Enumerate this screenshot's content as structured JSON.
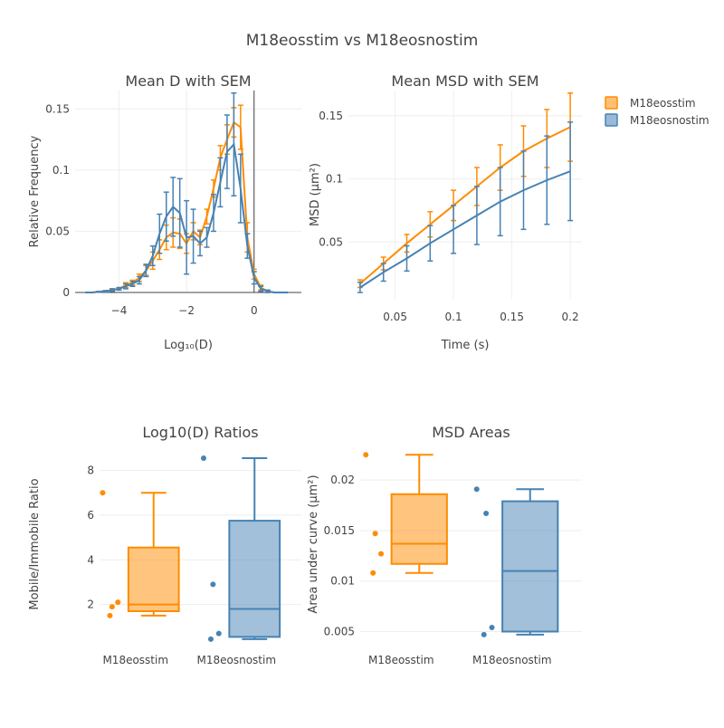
{
  "figure": {
    "title": "M18eosstim vs M18eosnostim",
    "legend": {
      "position": "top-right",
      "items": [
        {
          "label": "M18eosstim",
          "color": "#ff8c00"
        },
        {
          "label": "M18eosnostim",
          "color": "#4682b4"
        }
      ]
    },
    "colors": {
      "M18eosstim": "#ff8c00",
      "M18eosnostim": "#4682b4",
      "axis": "#444444",
      "grid": "#eeeeee"
    }
  },
  "chart_data": [
    {
      "id": "meanD",
      "type": "line",
      "title": "Mean D with SEM",
      "xlabel": "Log₁₀(D)",
      "ylabel": "Relative Frequency",
      "xlim": [
        -5.3,
        1.4
      ],
      "ylim": [
        0,
        0.165
      ],
      "xticks": [
        -4,
        -2,
        0
      ],
      "xtick_labels": [
        "−4",
        "−2",
        "0"
      ],
      "yticks": [
        0,
        0.05,
        0.1,
        0.15
      ],
      "ytick_labels": [
        "0",
        "0.05",
        "0.1",
        "0.15"
      ],
      "grid": true,
      "vline_x": 0,
      "x": [
        -5.0,
        -4.8,
        -4.6,
        -4.4,
        -4.2,
        -4.0,
        -3.8,
        -3.6,
        -3.4,
        -3.2,
        -3.0,
        -2.8,
        -2.6,
        -2.4,
        -2.2,
        -2.0,
        -1.8,
        -1.6,
        -1.4,
        -1.2,
        -1.0,
        -0.8,
        -0.6,
        -0.4,
        -0.2,
        0.0,
        0.2,
        0.4,
        0.6,
        0.8,
        1.0
      ],
      "series": [
        {
          "name": "M18eosstim",
          "color": "#ff8c00",
          "values": [
            0.0,
            0.0,
            0.0005,
            0.001,
            0.002,
            0.003,
            0.006,
            0.008,
            0.012,
            0.018,
            0.026,
            0.035,
            0.045,
            0.049,
            0.048,
            0.04,
            0.05,
            0.045,
            0.062,
            0.085,
            0.11,
            0.125,
            0.139,
            0.135,
            0.045,
            0.015,
            0.004,
            0.001,
            0.0,
            0.0,
            0.0
          ],
          "err": [
            0.0,
            0.0,
            0.0003,
            0.0005,
            0.001,
            0.001,
            0.002,
            0.002,
            0.003,
            0.004,
            0.007,
            0.008,
            0.01,
            0.012,
            0.012,
            0.008,
            0.007,
            0.006,
            0.006,
            0.007,
            0.01,
            0.012,
            0.012,
            0.018,
            0.012,
            0.004,
            0.002,
            0.001,
            0.0,
            0.0,
            0.0
          ]
        },
        {
          "name": "M18eosnostim",
          "color": "#4682b4",
          "values": [
            0.0,
            0.0,
            0.0005,
            0.001,
            0.002,
            0.003,
            0.005,
            0.007,
            0.01,
            0.018,
            0.03,
            0.048,
            0.062,
            0.07,
            0.065,
            0.045,
            0.046,
            0.04,
            0.045,
            0.065,
            0.09,
            0.115,
            0.121,
            0.085,
            0.038,
            0.012,
            0.003,
            0.001,
            0.0,
            0.0,
            0.0
          ],
          "err": [
            0.0,
            0.0,
            0.0003,
            0.0005,
            0.001,
            0.001,
            0.002,
            0.002,
            0.003,
            0.005,
            0.008,
            0.016,
            0.02,
            0.024,
            0.028,
            0.03,
            0.022,
            0.01,
            0.008,
            0.015,
            0.02,
            0.03,
            0.042,
            0.028,
            0.01,
            0.005,
            0.002,
            0.001,
            0.0,
            0.0,
            0.0
          ]
        }
      ]
    },
    {
      "id": "meanMSD",
      "type": "line",
      "title": "Mean MSD with SEM",
      "xlabel": "Time (s)",
      "ylabel": "MSD (μm²)",
      "xlim": [
        0.01,
        0.21
      ],
      "ylim": [
        0.005,
        0.17
      ],
      "xticks": [
        0.05,
        0.1,
        0.15,
        0.2
      ],
      "xtick_labels": [
        "0.05",
        "0.1",
        "0.15",
        "0.2"
      ],
      "yticks": [
        0.05,
        0.1,
        0.15
      ],
      "ytick_labels": [
        "0.05",
        "0.1",
        "0.15"
      ],
      "grid": true,
      "x": [
        0.02,
        0.04,
        0.06,
        0.08,
        0.1,
        0.12,
        0.14,
        0.16,
        0.18,
        0.2
      ],
      "series": [
        {
          "name": "M18eosstim",
          "color": "#ff8c00",
          "values": [
            0.017,
            0.033,
            0.049,
            0.064,
            0.079,
            0.094,
            0.109,
            0.122,
            0.132,
            0.141
          ],
          "err": [
            0.003,
            0.005,
            0.007,
            0.01,
            0.012,
            0.015,
            0.018,
            0.02,
            0.023,
            0.027
          ]
        },
        {
          "name": "M18eosnostim",
          "color": "#4682b4",
          "values": [
            0.014,
            0.026,
            0.037,
            0.049,
            0.06,
            0.071,
            0.082,
            0.091,
            0.099,
            0.106
          ],
          "err": [
            0.004,
            0.007,
            0.01,
            0.014,
            0.019,
            0.023,
            0.027,
            0.031,
            0.035,
            0.039
          ]
        }
      ]
    },
    {
      "id": "ratios",
      "type": "box",
      "title": "Log10(D) Ratios",
      "xlabel": "",
      "ylabel": "Mobile/Immobile Ratio",
      "ylim": [
        0.2,
        9.2
      ],
      "yticks": [
        2,
        4,
        6,
        8
      ],
      "ytick_labels": [
        "2",
        "4",
        "6",
        "8"
      ],
      "grid": true,
      "categories": [
        "M18eosstim",
        "M18eosnostim"
      ],
      "boxes": [
        {
          "name": "M18eosstim",
          "color": "#ff8c00",
          "min": 1.5,
          "q1": 1.7,
          "median": 2.0,
          "q3": 4.55,
          "max": 7.0,
          "points": [
            7.0,
            1.9,
            2.1,
            1.5
          ]
        },
        {
          "name": "M18eosnostim",
          "color": "#4682b4",
          "min": 0.45,
          "q1": 0.55,
          "median": 1.8,
          "q3": 5.75,
          "max": 8.55,
          "points": [
            8.55,
            2.9,
            0.7,
            0.45
          ]
        }
      ]
    },
    {
      "id": "areas",
      "type": "box",
      "title": "MSD Areas",
      "xlabel": "",
      "ylabel": "Area under curve (μm²)",
      "ylim": [
        0.0037,
        0.0236
      ],
      "yticks": [
        0.005,
        0.01,
        0.015,
        0.02
      ],
      "ytick_labels": [
        "0.005",
        "0.01",
        "0.015",
        "0.02"
      ],
      "grid": true,
      "categories": [
        "M18eosstim",
        "M18eosnostim"
      ],
      "boxes": [
        {
          "name": "M18eosstim",
          "color": "#ff8c00",
          "min": 0.0108,
          "q1": 0.0117,
          "median": 0.0137,
          "q3": 0.0186,
          "max": 0.0225,
          "points": [
            0.0225,
            0.0147,
            0.0127,
            0.0108
          ]
        },
        {
          "name": "M18eosnostim",
          "color": "#4682b4",
          "min": 0.0047,
          "q1": 0.005,
          "median": 0.011,
          "q3": 0.0179,
          "max": 0.0191,
          "points": [
            0.0191,
            0.0167,
            0.0054,
            0.0047
          ]
        }
      ]
    }
  ]
}
